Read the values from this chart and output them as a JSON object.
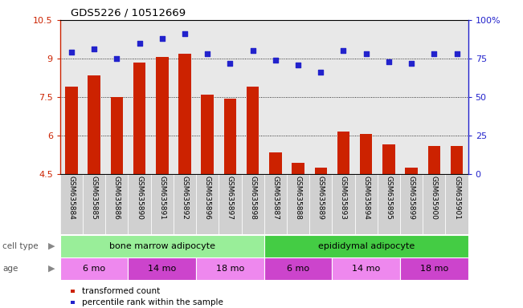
{
  "title": "GDS5226 / 10512669",
  "samples": [
    "GSM635884",
    "GSM635885",
    "GSM635886",
    "GSM635890",
    "GSM635891",
    "GSM635892",
    "GSM635896",
    "GSM635897",
    "GSM635898",
    "GSM635887",
    "GSM635888",
    "GSM635889",
    "GSM635893",
    "GSM635894",
    "GSM635895",
    "GSM635899",
    "GSM635900",
    "GSM635901"
  ],
  "bar_values": [
    7.9,
    8.35,
    7.5,
    8.85,
    9.05,
    9.2,
    7.6,
    7.45,
    7.9,
    5.35,
    4.95,
    4.75,
    6.15,
    6.05,
    5.65,
    4.75,
    5.6,
    5.6
  ],
  "dot_values": [
    79,
    81,
    75,
    85,
    88,
    91,
    78,
    72,
    80,
    74,
    71,
    66,
    80,
    78,
    73,
    72,
    78,
    78
  ],
  "ymin": 4.5,
  "ymax": 10.5,
  "yticks": [
    4.5,
    6.0,
    7.5,
    9.0,
    10.5
  ],
  "ytick_labels": [
    "4.5",
    "6",
    "7.5",
    "9",
    "10.5"
  ],
  "y2ticks": [
    0,
    25,
    50,
    75,
    100
  ],
  "y2tick_labels": [
    "0",
    "25",
    "50",
    "75",
    "100%"
  ],
  "bar_color": "#cc2200",
  "dot_color": "#2222cc",
  "grid_color": "#888888",
  "bg_color": "#e8e8e8",
  "cell_type_groups": [
    {
      "label": "bone marrow adipocyte",
      "start": 0,
      "end": 9,
      "color": "#99ee99"
    },
    {
      "label": "epididymal adipocyte",
      "start": 9,
      "end": 18,
      "color": "#44cc44"
    }
  ],
  "age_groups": [
    {
      "label": "6 mo",
      "start": 0,
      "end": 3,
      "color": "#ee88ee"
    },
    {
      "label": "14 mo",
      "start": 3,
      "end": 6,
      "color": "#cc44cc"
    },
    {
      "label": "18 mo",
      "start": 6,
      "end": 9,
      "color": "#ee88ee"
    },
    {
      "label": "6 mo",
      "start": 9,
      "end": 12,
      "color": "#cc44cc"
    },
    {
      "label": "14 mo",
      "start": 12,
      "end": 15,
      "color": "#ee88ee"
    },
    {
      "label": "18 mo",
      "start": 15,
      "end": 18,
      "color": "#cc44cc"
    }
  ],
  "cell_type_label": "cell type",
  "age_label": "age",
  "legend_bar_label": "transformed count",
  "legend_dot_label": "percentile rank within the sample"
}
